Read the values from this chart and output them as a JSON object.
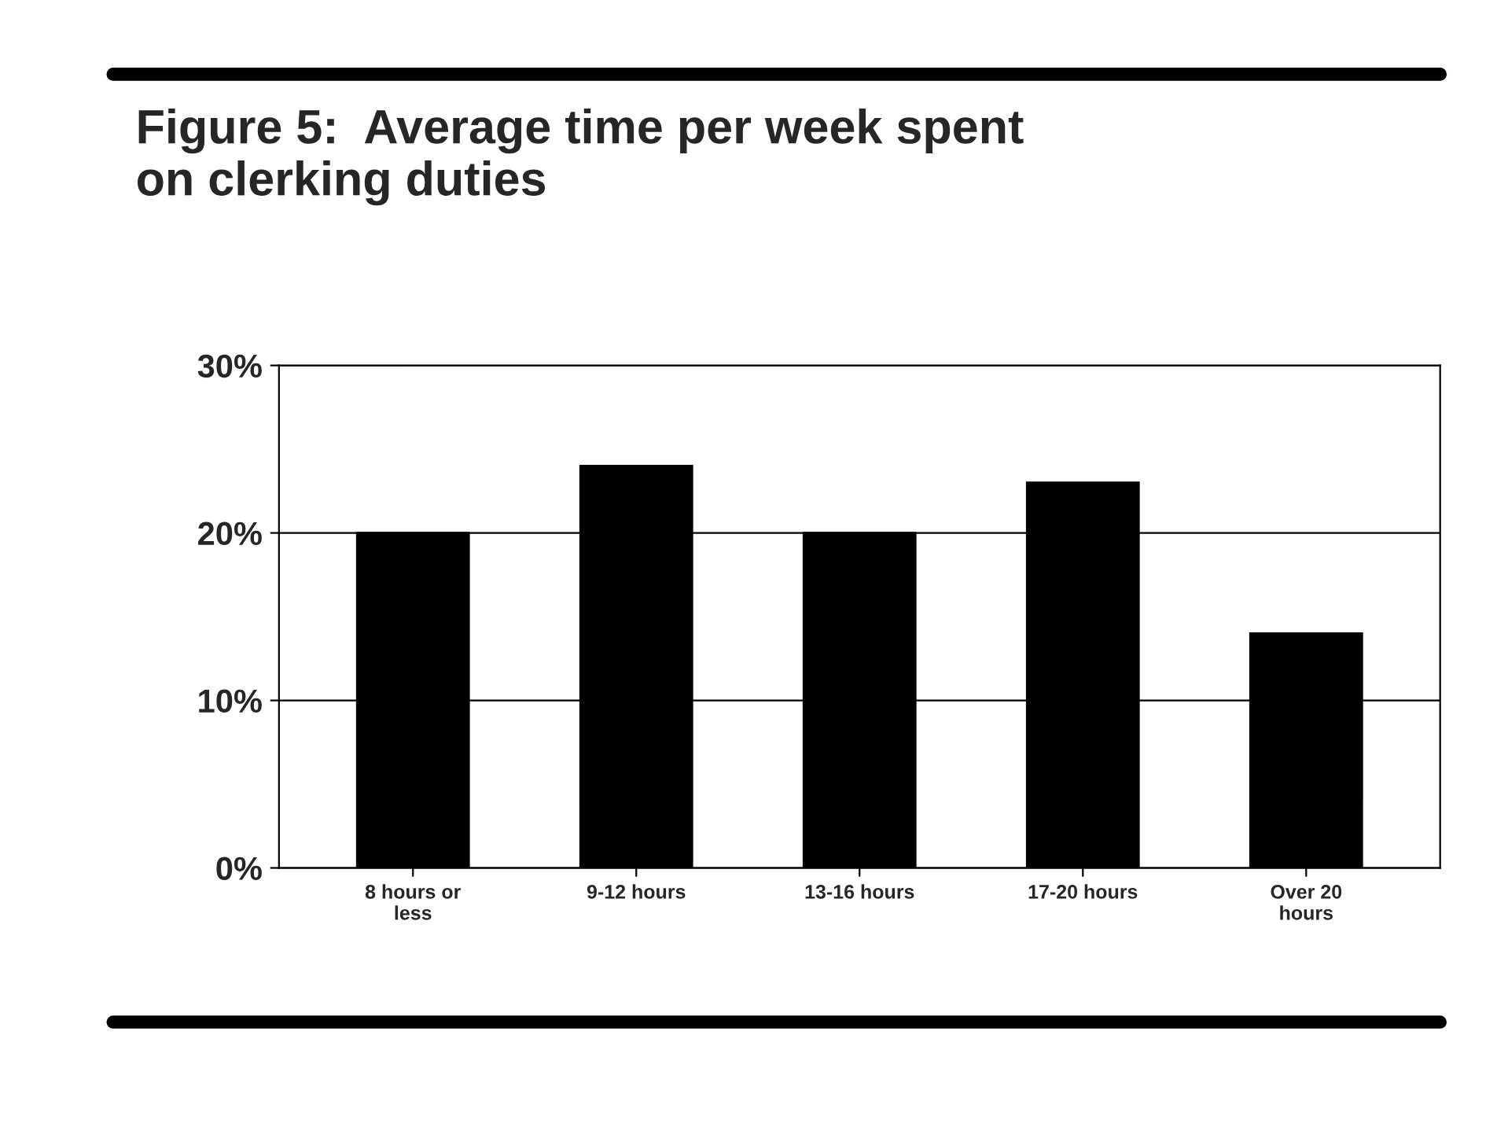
{
  "chart_data": {
    "type": "bar",
    "title": "Figure 5:  Average time per week spent\non clerking duties",
    "categories": [
      "8 hours or\nless",
      "9-12 hours",
      "13-16 hours",
      "17-20 hours",
      "Over 20\nhours"
    ],
    "values": [
      20,
      24,
      20,
      23,
      14
    ],
    "color": "#000000",
    "ylim": [
      0,
      30
    ],
    "yticks": [
      {
        "value": 0,
        "label": "0%"
      },
      {
        "value": 10,
        "label": "10%"
      },
      {
        "value": 20,
        "label": "20%"
      },
      {
        "value": 30,
        "label": "30%"
      }
    ],
    "grid": "y"
  }
}
